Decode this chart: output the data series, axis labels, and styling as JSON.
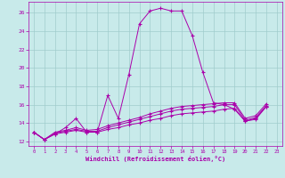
{
  "xlabel": "Windchill (Refroidissement éolien,°C)",
  "background_color": "#c8eaea",
  "grid_color": "#a0cccc",
  "line_color": "#aa00aa",
  "xlim": [
    -0.5,
    23.5
  ],
  "ylim": [
    11.5,
    27.2
  ],
  "yticks": [
    12,
    14,
    16,
    18,
    20,
    22,
    24,
    26
  ],
  "xticks": [
    0,
    1,
    2,
    3,
    4,
    5,
    6,
    7,
    8,
    9,
    10,
    11,
    12,
    13,
    14,
    15,
    16,
    17,
    18,
    19,
    20,
    21,
    22,
    23
  ],
  "y_main": [
    13.0,
    12.2,
    12.8,
    13.5,
    14.5,
    13.0,
    13.0,
    17.0,
    14.5,
    19.3,
    24.8,
    26.2,
    26.5,
    26.2,
    26.2,
    23.5,
    19.5,
    16.2,
    16.0,
    15.5,
    14.2,
    14.5,
    15.8
  ],
  "y_flat1": [
    13.0,
    12.2,
    12.8,
    13.0,
    13.2,
    13.0,
    13.0,
    13.3,
    13.5,
    13.8,
    14.0,
    14.3,
    14.5,
    14.8,
    15.0,
    15.1,
    15.2,
    15.3,
    15.5,
    15.6,
    14.2,
    14.4,
    15.8
  ],
  "y_flat2": [
    13.0,
    12.2,
    12.9,
    13.1,
    13.3,
    13.1,
    13.1,
    13.5,
    13.8,
    14.1,
    14.4,
    14.7,
    15.0,
    15.3,
    15.5,
    15.6,
    15.7,
    15.8,
    16.0,
    16.0,
    14.3,
    14.6,
    15.9
  ],
  "y_flat3": [
    13.0,
    12.2,
    13.0,
    13.2,
    13.5,
    13.2,
    13.3,
    13.7,
    14.0,
    14.3,
    14.6,
    15.0,
    15.3,
    15.6,
    15.8,
    15.9,
    16.0,
    16.1,
    16.2,
    16.2,
    14.5,
    14.8,
    16.1
  ]
}
